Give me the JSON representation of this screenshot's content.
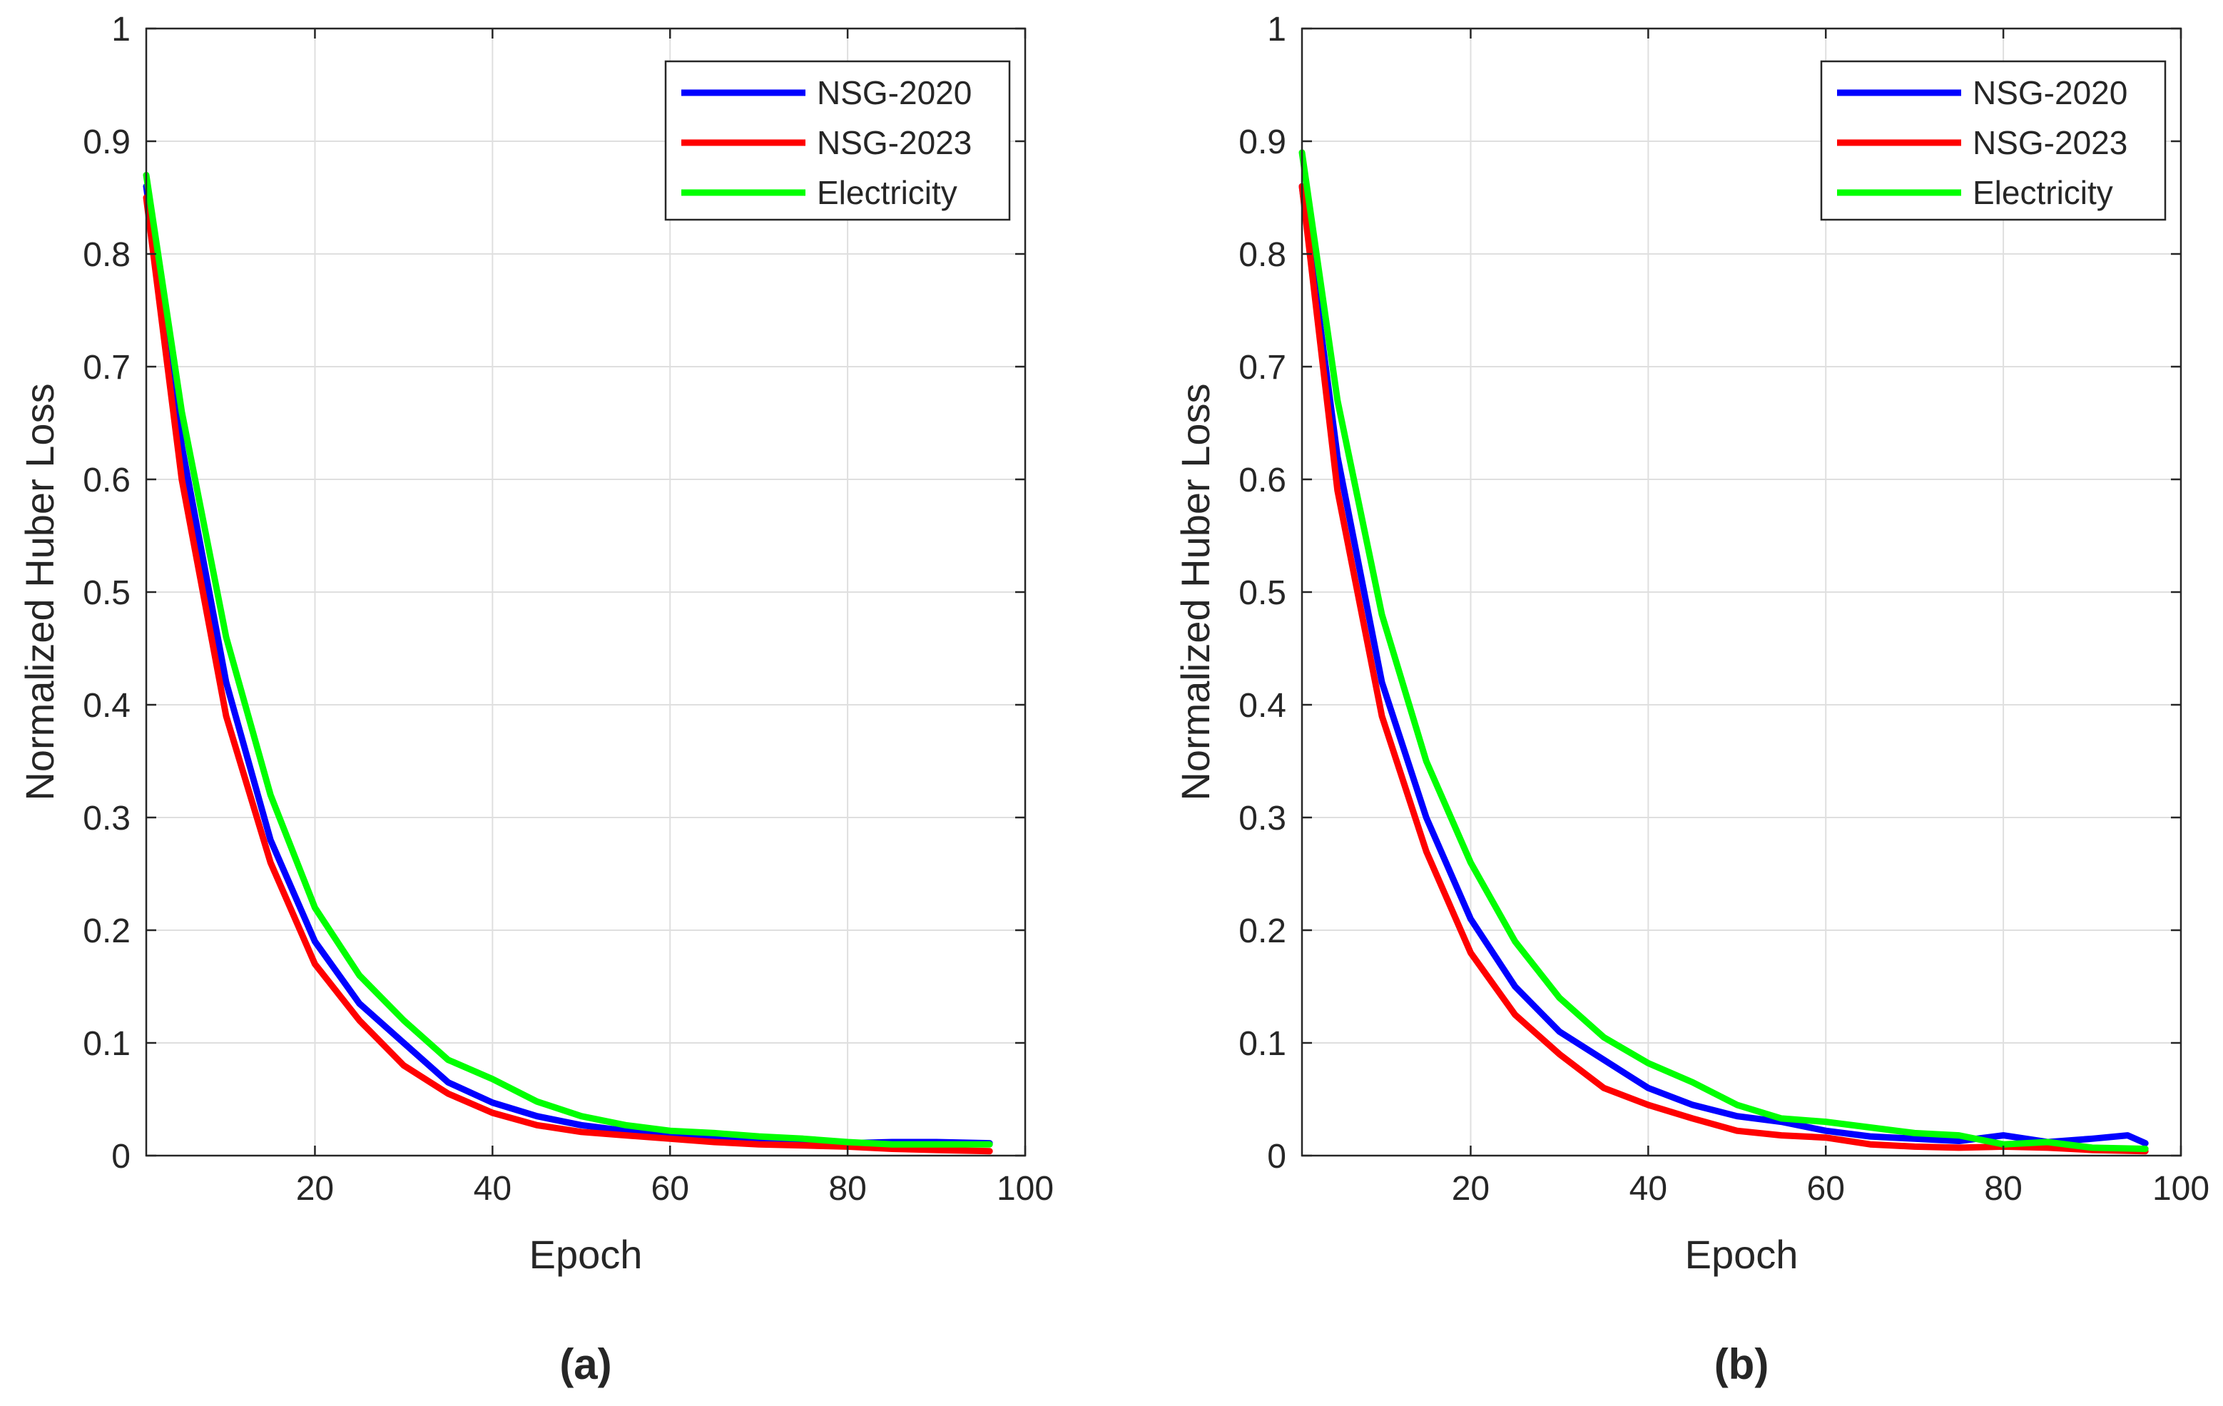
{
  "chart_data": [
    {
      "type": "line",
      "panel_label": "(a)",
      "xlabel": "Epoch",
      "ylabel": "Normalized Huber Loss",
      "xlim": [
        1,
        100
      ],
      "ylim": [
        0,
        1
      ],
      "xticks": [
        20,
        40,
        60,
        80,
        100
      ],
      "yticks": [
        0,
        0.1,
        0.2,
        0.3,
        0.4,
        0.5,
        0.6,
        0.7,
        0.8,
        0.9,
        1
      ],
      "grid": true,
      "legend_position": "top-right",
      "series": [
        {
          "name": "NSG-2020",
          "color": "#0000ff",
          "x": [
            1,
            5,
            10,
            15,
            20,
            25,
            30,
            35,
            40,
            45,
            50,
            55,
            60,
            65,
            70,
            75,
            80,
            85,
            90,
            96
          ],
          "y": [
            0.86,
            0.63,
            0.42,
            0.28,
            0.19,
            0.135,
            0.1,
            0.065,
            0.047,
            0.035,
            0.027,
            0.022,
            0.018,
            0.016,
            0.014,
            0.012,
            0.011,
            0.012,
            0.012,
            0.011
          ]
        },
        {
          "name": "NSG-2023",
          "color": "#ff0000",
          "x": [
            1,
            5,
            10,
            15,
            20,
            25,
            30,
            35,
            40,
            45,
            50,
            55,
            60,
            65,
            70,
            75,
            80,
            85,
            90,
            96
          ],
          "y": [
            0.85,
            0.6,
            0.39,
            0.26,
            0.17,
            0.12,
            0.08,
            0.055,
            0.038,
            0.027,
            0.021,
            0.018,
            0.015,
            0.012,
            0.01,
            0.009,
            0.008,
            0.006,
            0.005,
            0.004
          ]
        },
        {
          "name": "Electricity",
          "color": "#00ff00",
          "x": [
            1,
            5,
            10,
            15,
            20,
            25,
            30,
            35,
            40,
            45,
            50,
            55,
            60,
            65,
            70,
            75,
            80,
            85,
            90,
            96
          ],
          "y": [
            0.87,
            0.66,
            0.46,
            0.32,
            0.22,
            0.16,
            0.12,
            0.085,
            0.068,
            0.048,
            0.035,
            0.027,
            0.022,
            0.02,
            0.017,
            0.015,
            0.012,
            0.01,
            0.01,
            0.01
          ]
        }
      ]
    },
    {
      "type": "line",
      "panel_label": "(b)",
      "xlabel": "Epoch",
      "ylabel": "Normalized Huber Loss",
      "xlim": [
        1,
        100
      ],
      "ylim": [
        0,
        1
      ],
      "xticks": [
        20,
        40,
        60,
        80,
        100
      ],
      "yticks": [
        0,
        0.1,
        0.2,
        0.3,
        0.4,
        0.5,
        0.6,
        0.7,
        0.8,
        0.9,
        1
      ],
      "grid": true,
      "legend_position": "top-right",
      "series": [
        {
          "name": "NSG-2020",
          "color": "#0000ff",
          "x": [
            1,
            5,
            10,
            15,
            20,
            25,
            30,
            35,
            40,
            45,
            50,
            55,
            60,
            65,
            70,
            75,
            80,
            85,
            90,
            94,
            96
          ],
          "y": [
            0.86,
            0.62,
            0.42,
            0.3,
            0.21,
            0.15,
            0.11,
            0.085,
            0.06,
            0.045,
            0.035,
            0.03,
            0.022,
            0.017,
            0.015,
            0.013,
            0.018,
            0.012,
            0.015,
            0.018,
            0.011
          ]
        },
        {
          "name": "NSG-2023",
          "color": "#ff0000",
          "x": [
            1,
            5,
            10,
            15,
            20,
            25,
            30,
            35,
            40,
            45,
            50,
            55,
            60,
            65,
            70,
            75,
            80,
            85,
            90,
            96
          ],
          "y": [
            0.86,
            0.59,
            0.39,
            0.27,
            0.18,
            0.125,
            0.09,
            0.06,
            0.045,
            0.033,
            0.022,
            0.018,
            0.016,
            0.01,
            0.008,
            0.007,
            0.008,
            0.007,
            0.005,
            0.004
          ]
        },
        {
          "name": "Electricity",
          "color": "#00ff00",
          "x": [
            1,
            5,
            10,
            15,
            20,
            25,
            30,
            35,
            40,
            45,
            50,
            55,
            60,
            65,
            70,
            75,
            80,
            85,
            90,
            96
          ],
          "y": [
            0.89,
            0.67,
            0.48,
            0.35,
            0.26,
            0.19,
            0.14,
            0.105,
            0.082,
            0.065,
            0.045,
            0.033,
            0.03,
            0.025,
            0.02,
            0.018,
            0.01,
            0.012,
            0.007,
            0.006
          ]
        }
      ]
    }
  ]
}
